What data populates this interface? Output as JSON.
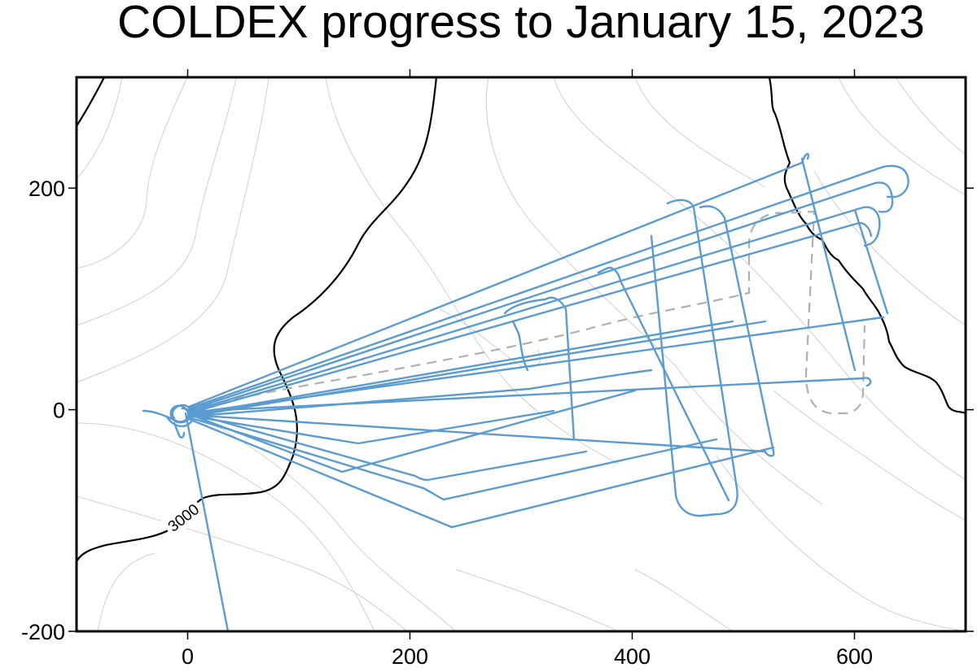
{
  "title": "COLDEX progress to January 15, 2023",
  "map": {
    "xlim": [
      -100,
      700
    ],
    "ylim": [
      -200,
      300
    ],
    "x_ticks": [
      0,
      200,
      400,
      600
    ],
    "y_ticks": [
      -200,
      0,
      200
    ],
    "x_tick_labels": [
      "0",
      "200",
      "400",
      "600"
    ],
    "y_tick_labels": [
      "-200",
      "0",
      "200"
    ],
    "contour_label": "3000",
    "colors": {
      "flight_lines": "#5b9bd0",
      "planned_line": "#b0b0b0",
      "background_contours": "#cfcfcf",
      "labeled_contour": "#000000",
      "coastline": "#000000"
    }
  }
}
